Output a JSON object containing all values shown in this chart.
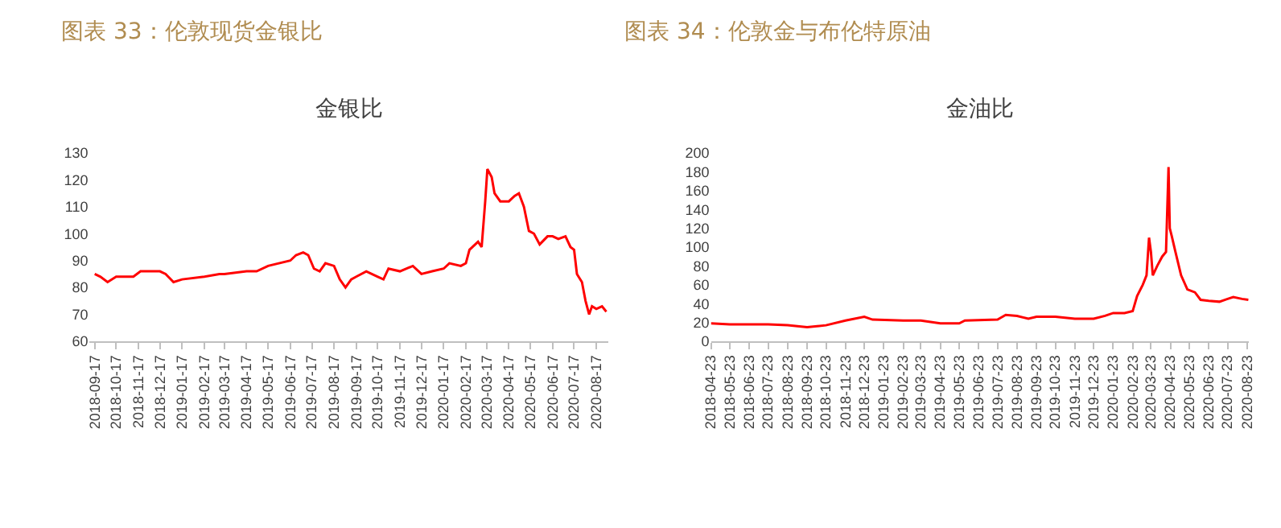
{
  "chart_data": [
    {
      "type": "line",
      "title": "图表 33：伦敦现货金银比",
      "subtitle": "金银比",
      "x": [
        "2018-09-17",
        "2018-09-25",
        "2018-10-05",
        "2018-10-17",
        "2018-11-10",
        "2018-11-20",
        "2018-12-17",
        "2018-12-25",
        "2019-01-05",
        "2019-01-17",
        "2019-02-17",
        "2019-03-10",
        "2019-03-17",
        "2019-04-17",
        "2019-05-01",
        "2019-05-17",
        "2019-06-17",
        "2019-06-25",
        "2019-07-05",
        "2019-07-12",
        "2019-07-20",
        "2019-07-28",
        "2019-08-05",
        "2019-08-17",
        "2019-08-25",
        "2019-09-02",
        "2019-09-10",
        "2019-09-17",
        "2019-10-01",
        "2019-10-17",
        "2019-10-25",
        "2019-11-01",
        "2019-11-17",
        "2019-12-05",
        "2019-12-17",
        "2020-01-01",
        "2020-01-17",
        "2020-01-25",
        "2020-02-10",
        "2020-02-17",
        "2020-02-22",
        "2020-03-05",
        "2020-03-10",
        "2020-03-15",
        "2020-03-18",
        "2020-03-24",
        "2020-03-28",
        "2020-04-05",
        "2020-04-17",
        "2020-04-25",
        "2020-05-01",
        "2020-05-08",
        "2020-05-15",
        "2020-05-22",
        "2020-05-30",
        "2020-06-10",
        "2020-06-17",
        "2020-06-25",
        "2020-07-05",
        "2020-07-12",
        "2020-07-17",
        "2020-07-21",
        "2020-07-28",
        "2020-08-02",
        "2020-08-07",
        "2020-08-11",
        "2020-08-17",
        "2020-08-25",
        "2020-08-31"
      ],
      "series": [
        {
          "color": "#ff0000",
          "values": [
            85,
            84,
            82,
            84,
            84,
            86,
            86,
            85,
            82,
            83,
            84,
            85,
            85,
            86,
            86,
            88,
            90,
            92,
            93,
            92,
            87,
            86,
            89,
            88,
            83,
            80,
            83,
            84,
            86,
            84,
            83,
            87,
            86,
            88,
            85,
            86,
            87,
            89,
            88,
            89,
            94,
            97,
            95,
            112,
            124,
            121,
            115,
            112,
            112,
            114,
            115,
            110,
            101,
            100,
            96,
            99,
            99,
            98,
            99,
            95,
            94,
            85,
            82,
            75,
            70,
            73,
            72,
            73,
            71
          ]
        }
      ],
      "xlim": [
        "2018-09-10",
        "2020-09-03"
      ],
      "ylim": [
        60,
        130
      ],
      "yticks": [
        60,
        70,
        80,
        90,
        100,
        110,
        120,
        130
      ],
      "xticks": [
        "2018-09-17",
        "2018-10-17",
        "2018-11-17",
        "2018-12-17",
        "2019-01-17",
        "2019-02-17",
        "2019-03-17",
        "2019-04-17",
        "2019-05-17",
        "2019-06-17",
        "2019-07-17",
        "2019-08-17",
        "2019-09-17",
        "2019-10-17",
        "2019-11-17",
        "2019-12-17",
        "2020-01-17",
        "2020-02-17",
        "2020-03-17",
        "2020-04-17",
        "2020-05-17",
        "2020-06-17",
        "2020-07-17",
        "2020-08-17"
      ]
    },
    {
      "type": "line",
      "title": "图表 34：伦敦金与布伦特原油",
      "subtitle": "金油比",
      "x": [
        "2018-04-23",
        "2018-05-23",
        "2018-07-23",
        "2018-08-23",
        "2018-09-23",
        "2018-10-23",
        "2018-11-23",
        "2018-12-23",
        "2019-01-05",
        "2019-02-23",
        "2019-03-23",
        "2019-04-23",
        "2019-05-23",
        "2019-06-01",
        "2019-07-23",
        "2019-08-05",
        "2019-08-23",
        "2019-09-10",
        "2019-09-23",
        "2019-10-23",
        "2019-11-23",
        "2019-12-23",
        "2020-01-10",
        "2020-01-23",
        "2020-02-10",
        "2020-02-23",
        "2020-03-01",
        "2020-03-10",
        "2020-03-16",
        "2020-03-20",
        "2020-03-23",
        "2020-03-26",
        "2020-04-02",
        "2020-04-10",
        "2020-04-16",
        "2020-04-20",
        "2020-04-22",
        "2020-04-25",
        "2020-05-01",
        "2020-05-10",
        "2020-05-20",
        "2020-06-01",
        "2020-06-10",
        "2020-06-23",
        "2020-07-10",
        "2020-07-23",
        "2020-08-01",
        "2020-08-15",
        "2020-08-25"
      ],
      "series": [
        {
          "color": "#ff0000",
          "values": [
            19,
            18,
            18,
            17,
            15,
            17,
            22,
            26,
            23,
            22,
            22,
            19,
            19,
            22,
            23,
            28,
            27,
            24,
            26,
            26,
            24,
            24,
            27,
            30,
            30,
            32,
            48,
            60,
            70,
            110,
            95,
            70,
            80,
            90,
            95,
            185,
            120,
            112,
            95,
            70,
            55,
            52,
            44,
            43,
            42,
            45,
            47,
            45,
            44
          ]
        }
      ],
      "xlim": [
        "2018-04-23",
        "2020-08-26"
      ],
      "ylim": [
        0,
        200
      ],
      "yticks": [
        0,
        20,
        40,
        60,
        80,
        100,
        120,
        140,
        160,
        180,
        200
      ],
      "xticks": [
        "2018-04-23",
        "2018-05-23",
        "2018-06-23",
        "2018-07-23",
        "2018-08-23",
        "2018-09-23",
        "2018-10-23",
        "2018-11-23",
        "2018-12-23",
        "2019-01-23",
        "2019-02-23",
        "2019-03-23",
        "2019-04-23",
        "2019-05-23",
        "2019-06-23",
        "2019-07-23",
        "2019-08-23",
        "2019-09-23",
        "2019-10-23",
        "2019-11-23",
        "2019-12-23",
        "2020-01-23",
        "2020-02-23",
        "2020-03-23",
        "2020-04-23",
        "2020-05-23",
        "2020-06-23",
        "2020-07-23",
        "2020-08-23"
      ]
    }
  ]
}
